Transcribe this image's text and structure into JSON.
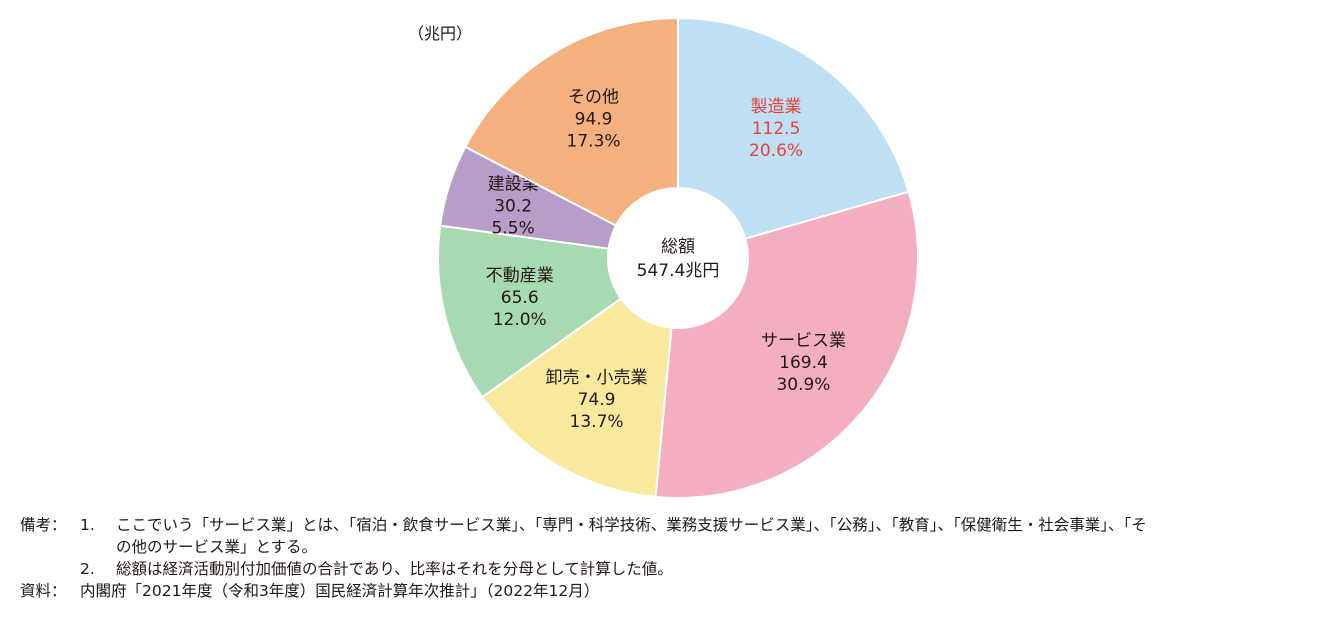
{
  "chart_data": {
    "type": "pie",
    "donut": true,
    "unit_label": "（兆円）",
    "center_label": "総額",
    "center_value": "547.4兆円",
    "slices": [
      {
        "label": "製造業",
        "value": 112.5,
        "percent": "20.6%",
        "color": "#bfdff4",
        "text_color": "#e8413a"
      },
      {
        "label": "サービス業",
        "value": 169.4,
        "percent": "30.9%",
        "color": "#f3afc0",
        "text_color": "#231815"
      },
      {
        "label": "卸売・小売業",
        "value": 74.9,
        "percent": "13.7%",
        "color": "#f9e99f",
        "text_color": "#231815"
      },
      {
        "label": "不動産業",
        "value": 65.6,
        "percent": "12.0%",
        "color": "#a8dab2",
        "text_color": "#231815"
      },
      {
        "label": "建設業",
        "value": 30.2,
        "percent": "5.5%",
        "color": "#b89dc9",
        "text_color": "#231815"
      },
      {
        "label": "その他",
        "value": 94.9,
        "percent": "17.3%",
        "color": "#f5b07f",
        "text_color": "#231815"
      }
    ]
  },
  "notes": [
    {
      "head": "備考：",
      "num": "1.",
      "lines": [
        "ここでいう「サービス業」とは、「宿泊・飲食サービス業」、「専門・科学技術、業務支援サービス業」、「公務」、「教育」、「保健衛生・社会事業」、「そ",
        "の他のサービス業」とする。"
      ]
    },
    {
      "head": "",
      "num": "2.",
      "lines": [
        "総額は経済活動別付加価値の合計であり、比率はそれを分母として計算した値。"
      ]
    },
    {
      "head": "資料：",
      "num": "",
      "lines": [
        "内閣府「2021年度（令和3年度）国民経済計算年次推計」（2022年12月）"
      ]
    }
  ]
}
